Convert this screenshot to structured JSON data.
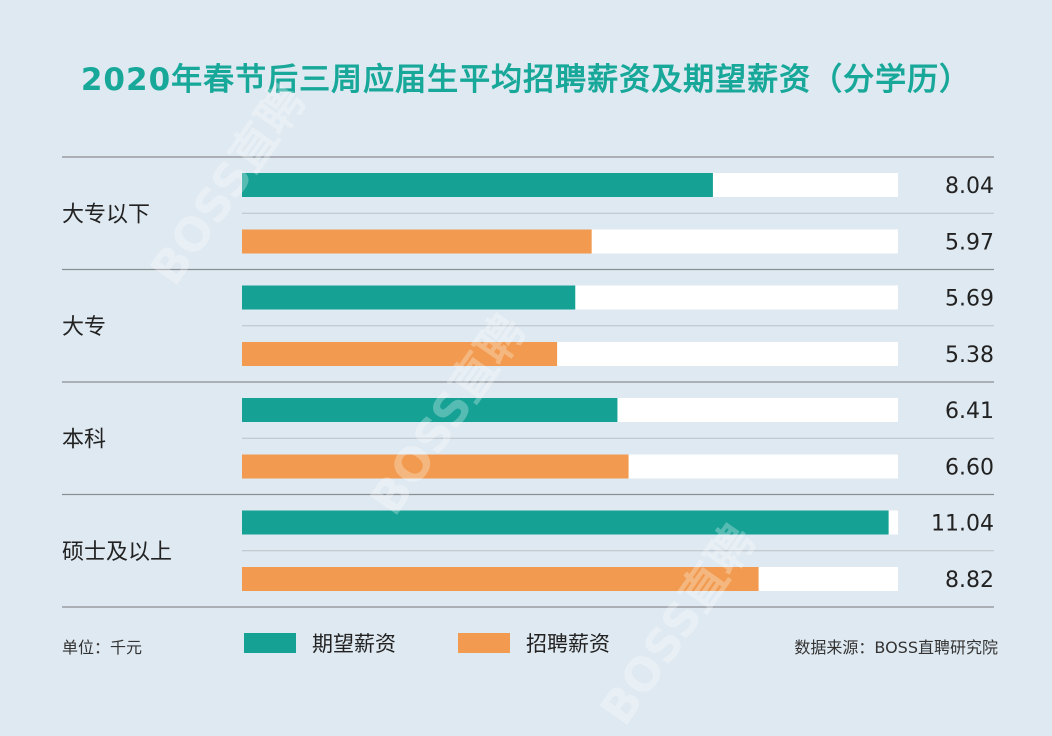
{
  "chart_data": {
    "type": "bar",
    "orientation": "horizontal",
    "title": "2020年春节后三周应届生平均招聘薪资及期望薪资（分学历）",
    "categories": [
      "大专以下",
      "大专",
      "本科",
      "硕士及以上"
    ],
    "series": [
      {
        "name": "期望薪资",
        "values": [
          8.04,
          5.69,
          6.41,
          11.04
        ],
        "color": "#16a195"
      },
      {
        "name": "招聘薪资",
        "values": [
          5.97,
          5.38,
          6.6,
          8.82
        ],
        "color": "#f29b50"
      }
    ],
    "xlim": [
      0,
      11.2
    ],
    "legend_position": "bottom"
  },
  "footer": {
    "unit": "单位：千元",
    "source": "数据来源：BOSS直聘研究院"
  },
  "watermark_text": "BOSS直聘"
}
